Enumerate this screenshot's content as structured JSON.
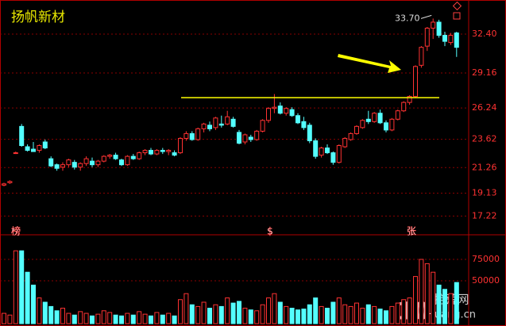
{
  "chart_data": {
    "type": "candlestick",
    "title": "扬帆新材",
    "up_color": "#ff3232",
    "down_color": "#54ffff",
    "grid": true,
    "ylim": [
      16.05,
      35.25
    ],
    "yticks": [
      {
        "value": 32.4,
        "label": "32.40"
      },
      29.16,
      26.24,
      23.62,
      21.26,
      19.13,
      17.22
    ],
    "open": [
      19.8,
      20.0,
      22.5,
      24.7,
      23.0,
      22.8,
      22.7,
      23.4,
      22.0,
      21.5,
      21.3,
      21.5,
      21.7,
      21.3,
      21.6,
      21.8,
      21.5,
      21.8,
      22.2,
      22.3,
      21.9,
      21.5,
      22.2,
      22.0,
      22.5,
      22.7,
      22.4,
      22.7,
      22.6,
      22.5,
      22.5,
      23.7,
      24.1,
      23.6,
      24.5,
      24.8,
      24.6,
      24.9,
      24.9,
      25.3,
      24.2,
      23.4,
      23.8,
      23.6,
      24.3,
      25.2,
      26.2,
      26.4,
      25.8,
      26.1,
      25.6,
      25.1,
      24.8,
      23.5,
      22.3,
      22.9,
      22.5,
      21.7,
      23.0,
      23.6,
      24.1,
      24.6,
      25.3,
      25.1,
      25.8,
      25.0,
      24.4,
      25.3,
      26.0,
      26.7,
      27.2,
      29.8,
      31.4,
      32.9,
      33.4,
      32.3,
      31.7,
      32.5
    ],
    "high": [
      20.0,
      20.2,
      22.6,
      24.9,
      23.2,
      23.4,
      23.2,
      23.6,
      22.2,
      21.6,
      21.7,
      22.0,
      21.9,
      21.7,
      22.2,
      22.1,
      21.9,
      22.3,
      22.4,
      22.5,
      22.0,
      22.3,
      22.4,
      22.6,
      22.8,
      22.9,
      22.8,
      22.9,
      22.8,
      22.7,
      23.8,
      24.3,
      24.3,
      24.6,
      25.0,
      25.1,
      25.5,
      25.6,
      26.0,
      25.5,
      24.4,
      24.1,
      24.0,
      24.4,
      25.3,
      26.3,
      27.4,
      26.7,
      26.3,
      26.3,
      25.8,
      25.5,
      25.0,
      23.7,
      23.0,
      23.2,
      22.6,
      23.2,
      23.8,
      24.2,
      24.8,
      25.3,
      26.0,
      25.9,
      26.1,
      25.2,
      25.4,
      26.1,
      26.8,
      27.3,
      29.8,
      31.4,
      33.0,
      33.7,
      33.6,
      32.6,
      32.5,
      32.6
    ],
    "low": [
      19.7,
      19.9,
      22.4,
      23.0,
      22.6,
      22.6,
      22.5,
      22.8,
      21.3,
      21.0,
      21.0,
      21.3,
      21.1,
      21.0,
      21.4,
      21.3,
      21.3,
      21.7,
      22.0,
      21.9,
      21.4,
      21.4,
      21.9,
      21.9,
      22.3,
      22.3,
      22.3,
      22.4,
      22.3,
      22.2,
      22.4,
      23.5,
      23.5,
      23.5,
      24.2,
      24.3,
      24.4,
      24.6,
      24.8,
      24.6,
      23.2,
      23.2,
      23.4,
      23.5,
      24.2,
      25.0,
      25.8,
      25.7,
      25.6,
      25.5,
      24.9,
      24.4,
      23.3,
      22.0,
      22.1,
      22.4,
      21.5,
      21.6,
      22.9,
      23.5,
      24.0,
      24.5,
      24.9,
      25.0,
      24.9,
      24.2,
      24.3,
      25.2,
      25.9,
      26.5,
      27.1,
      29.6,
      31.0,
      32.0,
      32.1,
      31.4,
      31.5,
      30.5
    ],
    "close": [
      19.9,
      20.1,
      22.5,
      23.1,
      22.7,
      22.6,
      23.1,
      22.9,
      21.4,
      21.2,
      21.5,
      21.9,
      21.3,
      21.6,
      22.0,
      21.5,
      21.8,
      22.2,
      22.3,
      22.0,
      21.5,
      22.2,
      22.0,
      22.5,
      22.7,
      22.4,
      22.7,
      22.6,
      22.7,
      22.3,
      23.7,
      24.1,
      23.6,
      24.5,
      24.9,
      24.5,
      25.4,
      24.8,
      25.5,
      24.7,
      23.3,
      24.0,
      23.6,
      24.3,
      25.2,
      26.2,
      26.3,
      25.8,
      26.2,
      25.6,
      25.0,
      24.6,
      23.5,
      22.2,
      22.9,
      22.5,
      21.7,
      23.1,
      23.7,
      24.1,
      24.7,
      25.2,
      25.1,
      25.8,
      25.0,
      24.4,
      25.3,
      26.0,
      26.7,
      27.2,
      29.7,
      31.3,
      32.9,
      33.4,
      32.3,
      31.8,
      32.3,
      31.3
    ],
    "volume": [
      12000,
      10000,
      85000,
      85000,
      60000,
      45000,
      30000,
      25000,
      20000,
      15000,
      18000,
      12000,
      10000,
      14000,
      12000,
      9000,
      11000,
      15000,
      13000,
      10000,
      9000,
      12000,
      10000,
      14000,
      11000,
      9000,
      13000,
      10000,
      12000,
      9000,
      28000,
      35000,
      22000,
      20000,
      25000,
      18000,
      22000,
      20000,
      30000,
      24000,
      26000,
      18000,
      16000,
      15000,
      22000,
      30000,
      35000,
      25000,
      20000,
      18000,
      16000,
      17000,
      22000,
      30000,
      20000,
      18000,
      25000,
      30000,
      22000,
      20000,
      24000,
      18000,
      22000,
      20000,
      17000,
      15000,
      20000,
      24000,
      28000,
      30000,
      55000,
      75000,
      70000,
      60000,
      45000,
      40000,
      35000,
      48000
    ],
    "volume_ylim": [
      0,
      100000
    ],
    "volume_yticks": [
      75000,
      50000
    ],
    "hline": 27.1,
    "hline_color": "#ffff00",
    "annotation": {
      "value": 33.7,
      "label": "33.70"
    },
    "markers": [
      "榜",
      "$",
      "张"
    ],
    "watermark": {
      "logo": "10",
      "name": "拾荒网",
      "site": "Huang.cn"
    }
  }
}
